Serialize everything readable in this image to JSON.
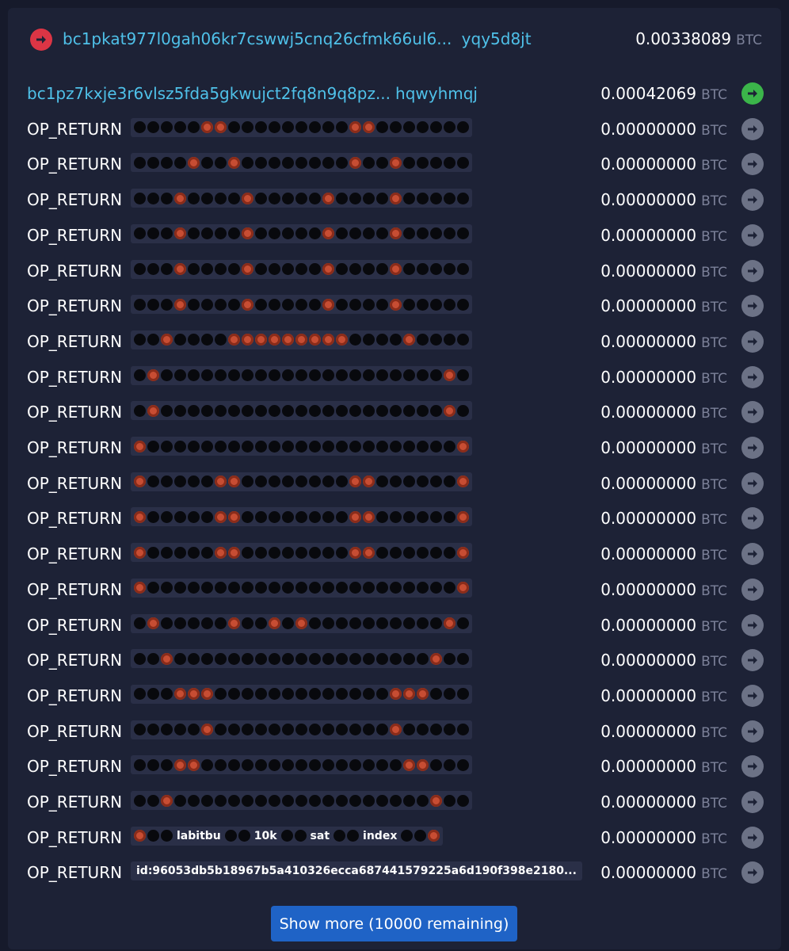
{
  "input": {
    "address_start": "bc1pkat977l0gah06kr7cswwj5cnq26cfmk66ul6...",
    "address_end": "yqy5d8jt",
    "amount": "0.00338089",
    "unit": "BTC",
    "icon": "arrow-right-icon",
    "icon_color": "#dc3545"
  },
  "outputs": [
    {
      "kind": "address",
      "address_start": "bc1pz7kxje3r6vlsz5fda5gkwujct2fq8n9q8pz...",
      "address_end": "hqwyhmqj",
      "amount": "0.00042069",
      "unit": "BTC",
      "arrow": "green"
    },
    {
      "kind": "op_return",
      "label": "OP_RETURN",
      "pattern": "0000044000000000440000000",
      "amount": "0.00000000",
      "unit": "BTC",
      "arrow": "gray"
    },
    {
      "kind": "op_return",
      "label": "OP_RETURN",
      "pattern": "0000400400000000400400000",
      "amount": "0.00000000",
      "unit": "BTC",
      "arrow": "gray"
    },
    {
      "kind": "op_return",
      "label": "OP_RETURN",
      "pattern": "0004000040000040000400000",
      "amount": "0.00000000",
      "unit": "BTC",
      "arrow": "gray"
    },
    {
      "kind": "op_return",
      "label": "OP_RETURN",
      "pattern": "0004000040000040000400000",
      "amount": "0.00000000",
      "unit": "BTC",
      "arrow": "gray"
    },
    {
      "kind": "op_return",
      "label": "OP_RETURN",
      "pattern": "0004000040000040000400000",
      "amount": "0.00000000",
      "unit": "BTC",
      "arrow": "gray"
    },
    {
      "kind": "op_return",
      "label": "OP_RETURN",
      "pattern": "0004000040000040000400000",
      "amount": "0.00000000",
      "unit": "BTC",
      "arrow": "gray"
    },
    {
      "kind": "op_return",
      "label": "OP_RETURN",
      "pattern": "0040000444444444000040000",
      "amount": "0.00000000",
      "unit": "BTC",
      "arrow": "gray"
    },
    {
      "kind": "op_return",
      "label": "OP_RETURN",
      "pattern": "0400000000000000000000040",
      "amount": "0.00000000",
      "unit": "BTC",
      "arrow": "gray"
    },
    {
      "kind": "op_return",
      "label": "OP_RETURN",
      "pattern": "0400000000000000000000040",
      "amount": "0.00000000",
      "unit": "BTC",
      "arrow": "gray"
    },
    {
      "kind": "op_return",
      "label": "OP_RETURN",
      "pattern": "4000000000000000000000004",
      "amount": "0.00000000",
      "unit": "BTC",
      "arrow": "gray"
    },
    {
      "kind": "op_return",
      "label": "OP_RETURN",
      "pattern": "4000004400000000440000004",
      "amount": "0.00000000",
      "unit": "BTC",
      "arrow": "gray"
    },
    {
      "kind": "op_return",
      "label": "OP_RETURN",
      "pattern": "4000004400000000440000004",
      "amount": "0.00000000",
      "unit": "BTC",
      "arrow": "gray"
    },
    {
      "kind": "op_return",
      "label": "OP_RETURN",
      "pattern": "4000004400000000440000004",
      "amount": "0.00000000",
      "unit": "BTC",
      "arrow": "gray"
    },
    {
      "kind": "op_return",
      "label": "OP_RETURN",
      "pattern": "4000000000000000000000004",
      "amount": "0.00000000",
      "unit": "BTC",
      "arrow": "gray"
    },
    {
      "kind": "op_return",
      "label": "OP_RETURN",
      "pattern": "0400000400404000000000040",
      "amount": "0.00000000",
      "unit": "BTC",
      "arrow": "gray"
    },
    {
      "kind": "op_return",
      "label": "OP_RETURN",
      "pattern": "0040000000000000000000400",
      "amount": "0.00000000",
      "unit": "BTC",
      "arrow": "gray"
    },
    {
      "kind": "op_return",
      "label": "OP_RETURN",
      "pattern": "0004440000000000000444000",
      "amount": "0.00000000",
      "unit": "BTC",
      "arrow": "gray"
    },
    {
      "kind": "op_return",
      "label": "OP_RETURN",
      "pattern": "0000040000000000000400000",
      "amount": "0.00000000",
      "unit": "BTC",
      "arrow": "gray"
    },
    {
      "kind": "op_return",
      "label": "OP_RETURN",
      "pattern": "0004400000000000000044000",
      "amount": "0.00000000",
      "unit": "BTC",
      "arrow": "gray"
    },
    {
      "kind": "op_return",
      "label": "OP_RETURN",
      "pattern": "0040000000000000000000400",
      "amount": "0.00000000",
      "unit": "BTC",
      "arrow": "gray"
    },
    {
      "kind": "op_return",
      "label": "OP_RETURN",
      "pattern": "400|labitbu|00|10k|00|sat|00|index|004",
      "amount": "0.00000000",
      "unit": "BTC",
      "arrow": "gray"
    },
    {
      "kind": "op_return",
      "label": "OP_RETURN",
      "text": "id:96053db5b18967b5a410326ecca687441579225a6d190f398e2180...",
      "amount": "0.00000000",
      "unit": "BTC",
      "arrow": "gray"
    }
  ],
  "show_more": "Show more (10000 remaining)",
  "colors": {
    "background": "#161a2b",
    "panel": "#1d2236",
    "address": "#4fc1e9",
    "arrow_green": "#3bb54a",
    "arrow_gray": "#6c7286",
    "button": "#1f63c6"
  }
}
